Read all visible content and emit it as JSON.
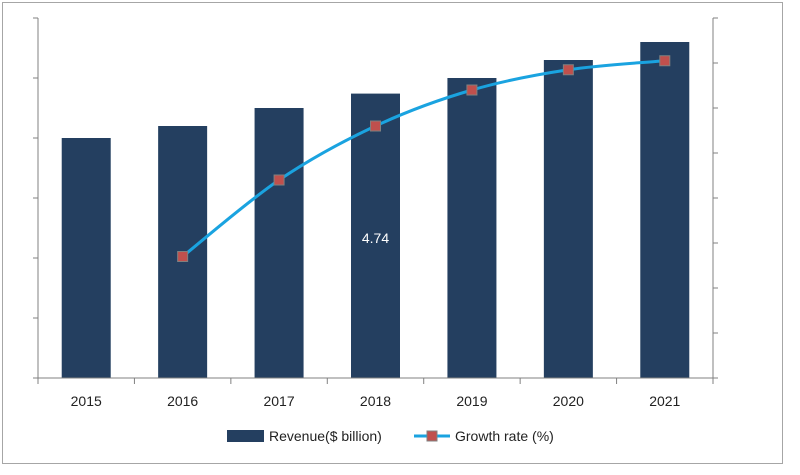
{
  "chart_data": {
    "type": "bar",
    "categories": [
      "2015",
      "2016",
      "2017",
      "2018",
      "2019",
      "2020",
      "2021"
    ],
    "series": [
      {
        "name": "Revenue($ billion)",
        "type": "bar",
        "axis": "left",
        "color": "#243f60",
        "values": [
          4.0,
          4.2,
          4.5,
          4.74,
          5.0,
          5.3,
          5.6
        ]
      },
      {
        "name": "Growth rate (%)",
        "type": "line",
        "axis": "right",
        "color": "#1aa3e0",
        "marker_color": "#c0504d",
        "values": [
          null,
          2.7,
          4.4,
          5.6,
          6.4,
          6.85,
          7.05
        ]
      }
    ],
    "data_labels": [
      {
        "series": 0,
        "category": "2018",
        "text": "4.74"
      }
    ],
    "left_axis": {
      "ylim": [
        0,
        6
      ],
      "ticks": 6,
      "tick_labels_shown": false
    },
    "right_axis": {
      "ylim": [
        0,
        8
      ],
      "ticks": 8,
      "tick_labels_shown": false
    },
    "grid": false,
    "legend": "bottom",
    "title": "",
    "xlabel": "",
    "ylabel": ""
  }
}
